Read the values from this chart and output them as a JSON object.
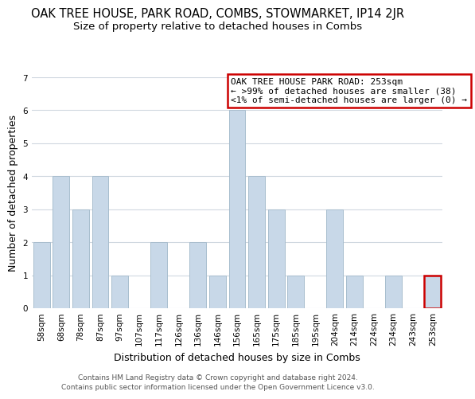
{
  "title": "OAK TREE HOUSE, PARK ROAD, COMBS, STOWMARKET, IP14 2JR",
  "subtitle": "Size of property relative to detached houses in Combs",
  "xlabel": "Distribution of detached houses by size in Combs",
  "ylabel": "Number of detached properties",
  "bar_labels": [
    "58sqm",
    "68sqm",
    "78sqm",
    "87sqm",
    "97sqm",
    "107sqm",
    "117sqm",
    "126sqm",
    "136sqm",
    "146sqm",
    "156sqm",
    "165sqm",
    "175sqm",
    "185sqm",
    "195sqm",
    "204sqm",
    "214sqm",
    "224sqm",
    "234sqm",
    "243sqm",
    "253sqm"
  ],
  "bar_values": [
    2,
    4,
    3,
    4,
    1,
    0,
    2,
    0,
    2,
    1,
    6,
    4,
    3,
    1,
    0,
    3,
    1,
    0,
    1,
    0,
    1
  ],
  "bar_color": "#c8d8e8",
  "bar_edge_color": "#a8bece",
  "highlight_index": 20,
  "ylim": [
    0,
    7
  ],
  "yticks": [
    0,
    1,
    2,
    3,
    4,
    5,
    6,
    7
  ],
  "legend_title": "OAK TREE HOUSE PARK ROAD: 253sqm",
  "legend_line1": "← >99% of detached houses are smaller (38)",
  "legend_line2": "<1% of semi-detached houses are larger (0) →",
  "legend_box_color": "#ffffff",
  "legend_box_edge_color": "#cc0000",
  "footer_line1": "Contains HM Land Registry data © Crown copyright and database right 2024.",
  "footer_line2": "Contains public sector information licensed under the Open Government Licence v3.0.",
  "title_fontsize": 10.5,
  "subtitle_fontsize": 9.5,
  "axis_label_fontsize": 9,
  "tick_fontsize": 7.5,
  "legend_fontsize": 8,
  "footer_fontsize": 6.5
}
